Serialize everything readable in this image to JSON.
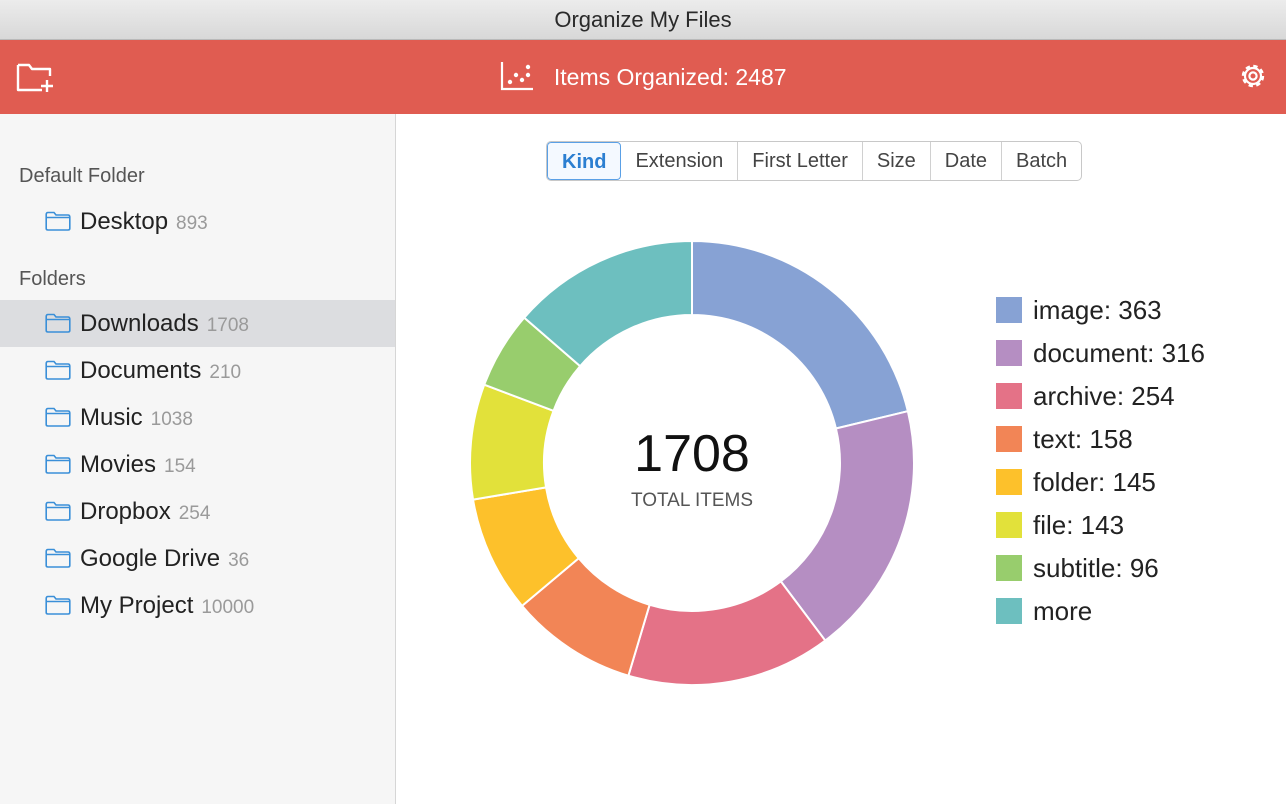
{
  "window": {
    "title": "Organize My Files"
  },
  "toolbar": {
    "new_folder_icon": "folder-plus-icon",
    "stats_icon": "scatter-chart-icon",
    "items_organized": "Items Organized: 2487",
    "settings_icon": "gear-icon"
  },
  "sidebar": {
    "default_header": "Default Folder",
    "default_folders": [
      {
        "name": "Desktop",
        "count": "893"
      }
    ],
    "folders_header": "Folders",
    "folders": [
      {
        "name": "Downloads",
        "count": "1708",
        "selected": true
      },
      {
        "name": "Documents",
        "count": "210"
      },
      {
        "name": "Music",
        "count": "1038"
      },
      {
        "name": "Movies",
        "count": "154"
      },
      {
        "name": "Dropbox",
        "count": "254"
      },
      {
        "name": "Google Drive",
        "count": "36"
      },
      {
        "name": "My Project",
        "count": "10000"
      }
    ]
  },
  "tabs": [
    {
      "label": "Kind",
      "active": true
    },
    {
      "label": "Extension"
    },
    {
      "label": "First Letter"
    },
    {
      "label": "Size"
    },
    {
      "label": "Date"
    },
    {
      "label": "Batch"
    }
  ],
  "summary": {
    "total": "1708",
    "total_label": "TOTAL ITEMS"
  },
  "chart_data": {
    "type": "pie",
    "total": 1708,
    "slices": [
      {
        "label": "image: 363",
        "value": 363,
        "color": "#87a2d4"
      },
      {
        "label": "document: 316",
        "value": 316,
        "color": "#b58ec2"
      },
      {
        "label": "archive: 254",
        "value": 254,
        "color": "#e47287"
      },
      {
        "label": "text: 158",
        "value": 158,
        "color": "#f28556"
      },
      {
        "label": "folder: 145",
        "value": 145,
        "color": "#fdc12b"
      },
      {
        "label": "file: 143",
        "value": 143,
        "color": "#e2e13a"
      },
      {
        "label": "subtitle: 96",
        "value": 96,
        "color": "#98cd6d"
      },
      {
        "label": "more",
        "value": 233,
        "color": "#6dbfbf"
      }
    ]
  },
  "colors": {
    "accent": "#e05c51",
    "selection": "#dcdde0",
    "tab_active": "#2c7fd1",
    "folder_icon": "#3a8fd8"
  }
}
